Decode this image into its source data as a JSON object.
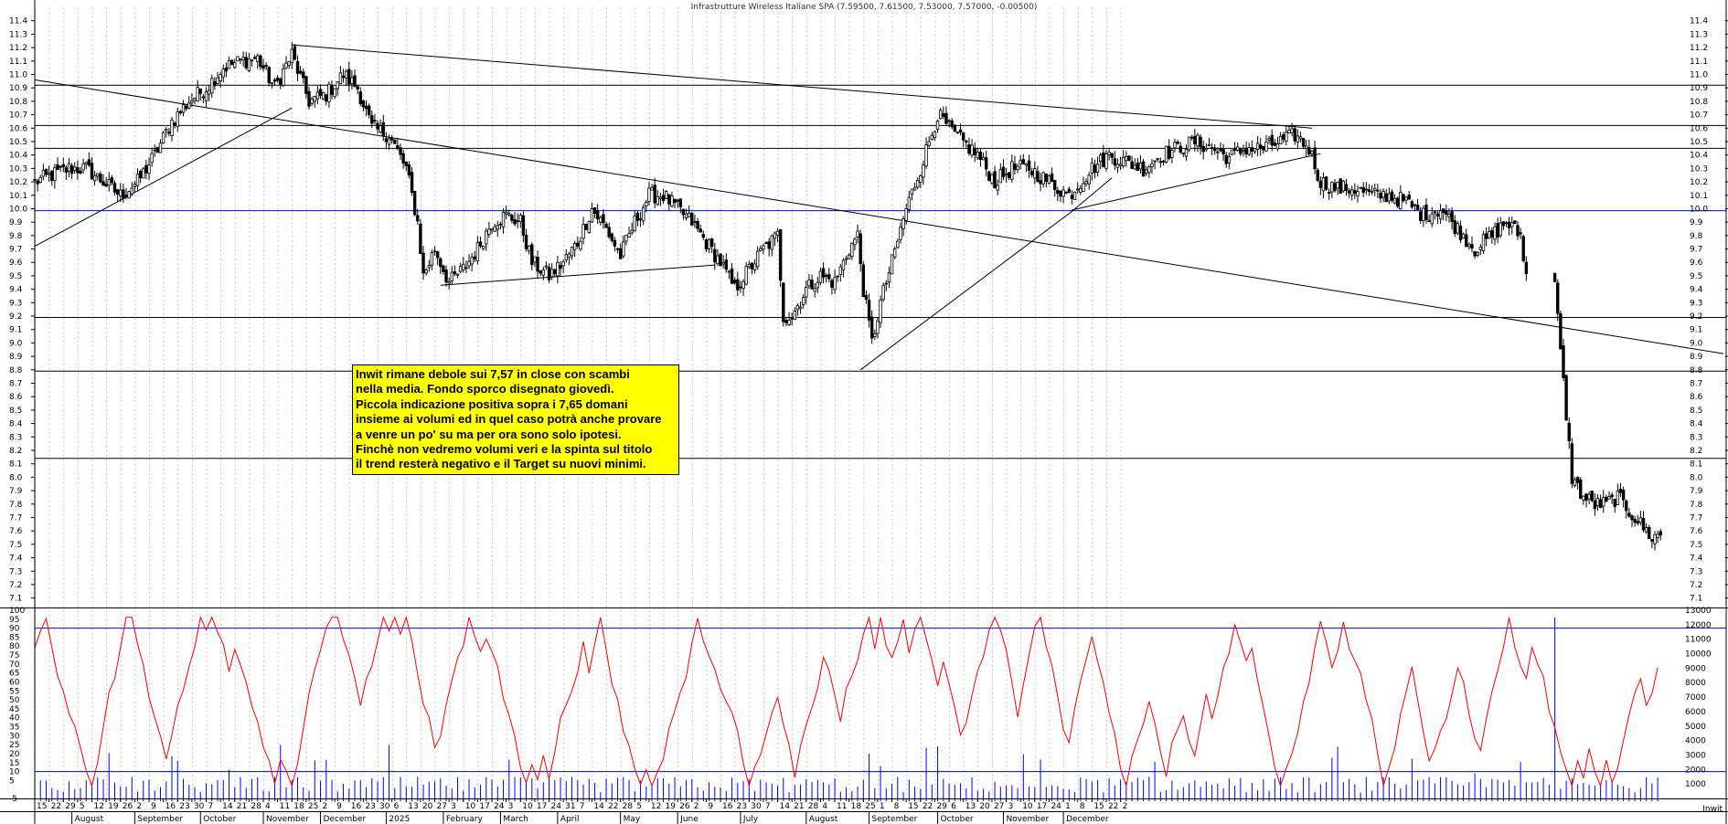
{
  "window_title": "Infrastrutture Wireless Italiane SPA (7.59500, 7.61500, 7.53000, 7.57000, -0.00500)",
  "annotation": "Inwit rimane debole sui 7,57 in close con scambi\nnella media. Fondo sporco disegnato giovedì.\nPiccola indicazione positiva sopra i 7,65 domani\ninsieme ai volumi ed in quel caso potrà anche provare\na venre un po' su ma per ora sono solo ipotesi.\nFinchè non vedremo volumi veri e la spinta sul titolo\nil trend resterà negativo e il Target su nuovi minimi.",
  "corner_label": "Inwit",
  "colors": {
    "grid": "#c8c8c8",
    "price": "#000000",
    "blue": "#0000ff",
    "osc": "#ff0000",
    "vol": "#0000ff",
    "note_bg": "#ffff00"
  },
  "chart_data": [
    {
      "type": "candlestick",
      "title": "Infrastrutture Wireless Italiane SPA (7.59500, 7.61500, 7.53000, 7.57000, -0.00500)",
      "ylim": [
        7.05,
        11.5
      ],
      "ytick_labels": [
        "7.1",
        "7.2",
        "7.3",
        "7.4",
        "7.5",
        "7.6",
        "7.7",
        "7.8",
        "7.9",
        "8.0",
        "8.1",
        "8.2",
        "8.3",
        "8.4",
        "8.5",
        "8.6",
        "8.7",
        "8.8",
        "8.9",
        "9.0",
        "9.1",
        "9.2",
        "9.3",
        "9.4",
        "9.5",
        "9.6",
        "9.7",
        "9.8",
        "9.9",
        "10.0",
        "10.1",
        "10.2",
        "10.3",
        "10.4",
        "10.5",
        "10.6",
        "10.7",
        "10.8",
        "10.9",
        "11.0",
        "11.1",
        "11.2",
        "11.3",
        "11.4"
      ],
      "last_bar": {
        "open": 7.595,
        "high": 7.615,
        "low": 7.53,
        "close": 7.57,
        "change": -0.005
      },
      "horizontal_levels": [
        {
          "value": 10.92,
          "color": "black"
        },
        {
          "value": 10.62,
          "color": "black"
        },
        {
          "value": 10.45,
          "color": "black"
        },
        {
          "value": 9.985,
          "color": "blue"
        },
        {
          "value": 9.19,
          "color": "black"
        },
        {
          "value": 8.79,
          "color": "black"
        },
        {
          "value": 8.14,
          "color": "black"
        }
      ],
      "trendlines": [
        {
          "from": [
            0,
            9.72
          ],
          "to": [
            90,
            10.75
          ]
        },
        {
          "from": [
            0,
            10.96
          ],
          "to": [
            591,
            8.92
          ]
        },
        {
          "from": [
            90,
            11.22
          ],
          "to": [
            447,
            10.6
          ]
        },
        {
          "from": [
            142,
            9.43
          ],
          "to": [
            238,
            9.58
          ]
        },
        {
          "from": [
            289,
            8.8
          ],
          "to": [
            363,
            9.98
          ]
        },
        {
          "from": [
            363,
            9.98
          ],
          "to": [
            377,
            10.23
          ]
        },
        {
          "from": [
            363,
            9.99
          ],
          "to": [
            450,
            10.41
          ]
        }
      ],
      "anchors": [
        [
          0,
          10.2
        ],
        [
          6,
          10.25
        ],
        [
          12,
          10.3
        ],
        [
          18,
          10.3
        ],
        [
          24,
          10.2
        ],
        [
          30,
          10.1
        ],
        [
          36,
          10.2
        ],
        [
          42,
          10.4
        ],
        [
          48,
          10.65
        ],
        [
          54,
          10.8
        ],
        [
          60,
          10.9
        ],
        [
          66,
          11.05
        ],
        [
          72,
          11.1
        ],
        [
          78,
          11.12
        ],
        [
          84,
          10.9
        ],
        [
          90,
          11.15
        ],
        [
          96,
          10.8
        ],
        [
          102,
          10.85
        ],
        [
          108,
          11.0
        ],
        [
          113,
          10.9
        ],
        [
          118,
          10.6
        ],
        [
          124,
          10.55
        ],
        [
          130,
          10.3
        ],
        [
          134,
          9.9
        ],
        [
          136,
          9.5
        ],
        [
          140,
          9.7
        ],
        [
          145,
          9.45
        ],
        [
          150,
          9.55
        ],
        [
          155,
          9.7
        ],
        [
          160,
          9.9
        ],
        [
          165,
          9.95
        ],
        [
          170,
          9.9
        ],
        [
          174,
          9.6
        ],
        [
          180,
          9.5
        ],
        [
          185,
          9.6
        ],
        [
          190,
          9.75
        ],
        [
          195,
          10.0
        ],
        [
          200,
          9.85
        ],
        [
          205,
          9.65
        ],
        [
          210,
          9.9
        ],
        [
          215,
          10.1
        ],
        [
          220,
          10.1
        ],
        [
          225,
          10.0
        ],
        [
          230,
          9.9
        ],
        [
          235,
          9.75
        ],
        [
          240,
          9.6
        ],
        [
          245,
          9.4
        ],
        [
          250,
          9.55
        ],
        [
          255,
          9.7
        ],
        [
          260,
          9.8
        ],
        [
          262,
          9.2
        ],
        [
          265,
          9.2
        ],
        [
          270,
          9.4
        ],
        [
          275,
          9.5
        ],
        [
          280,
          9.45
        ],
        [
          285,
          9.7
        ],
        [
          288,
          9.8
        ],
        [
          290,
          9.4
        ],
        [
          293,
          9.0
        ],
        [
          296,
          9.3
        ],
        [
          300,
          9.6
        ],
        [
          305,
          10.0
        ],
        [
          310,
          10.3
        ],
        [
          316,
          10.7
        ],
        [
          322,
          10.55
        ],
        [
          330,
          10.4
        ],
        [
          336,
          10.2
        ],
        [
          342,
          10.3
        ],
        [
          348,
          10.3
        ],
        [
          355,
          10.2
        ],
        [
          362,
          10.1
        ],
        [
          370,
          10.3
        ],
        [
          376,
          10.4
        ],
        [
          382,
          10.35
        ],
        [
          388,
          10.3
        ],
        [
          394,
          10.4
        ],
        [
          400,
          10.45
        ],
        [
          406,
          10.5
        ],
        [
          412,
          10.45
        ],
        [
          418,
          10.38
        ],
        [
          424,
          10.45
        ],
        [
          430,
          10.45
        ],
        [
          436,
          10.5
        ],
        [
          441,
          10.55
        ],
        [
          446,
          10.45
        ],
        [
          450,
          10.2
        ],
        [
          456,
          10.15
        ],
        [
          462,
          10.15
        ],
        [
          468,
          10.1
        ],
        [
          474,
          10.1
        ],
        [
          480,
          10.05
        ],
        [
          486,
          9.95
        ],
        [
          492,
          10.0
        ],
        [
          498,
          9.85
        ],
        [
          504,
          9.7
        ],
        [
          510,
          9.8
        ],
        [
          515,
          9.9
        ],
        [
          520,
          9.8
        ],
        [
          522,
          9.5
        ],
        [
          524,
          9.4
        ],
        [
          528,
          9.5
        ],
        [
          532,
          9.42
        ],
        [
          535,
          8.7
        ],
        [
          538,
          8.0
        ],
        [
          542,
          7.85
        ],
        [
          546,
          7.8
        ],
        [
          550,
          7.8
        ],
        [
          554,
          7.85
        ],
        [
          558,
          7.75
        ],
        [
          562,
          7.65
        ],
        [
          566,
          7.55
        ],
        [
          569,
          7.57
        ]
      ]
    },
    {
      "type": "line",
      "ylim": [
        -5,
        100
      ],
      "ytick_labels": [
        "-5",
        "5",
        "10",
        "15",
        "20",
        "25",
        "30",
        "35",
        "40",
        "45",
        "50",
        "55",
        "60",
        "65",
        "70",
        "75",
        "80",
        "85",
        "90",
        "95",
        "100"
      ],
      "levels": [
        90,
        10
      ]
    },
    {
      "type": "bar",
      "ylim": [
        0,
        13000
      ],
      "ytick_labels": [
        "1000",
        "2000",
        "3000",
        "4000",
        "5000",
        "6000",
        "7000",
        "8000",
        "9000",
        "10000",
        "11000",
        "12000",
        "13000"
      ]
    }
  ],
  "x_axis": {
    "day_labels": [
      {
        "i": 0,
        "t": "15"
      },
      {
        "i": 5,
        "t": "22"
      },
      {
        "i": 10,
        "t": "29"
      },
      {
        "i": 15,
        "t": "5"
      },
      {
        "i": 20,
        "t": "12"
      },
      {
        "i": 25,
        "t": "19"
      },
      {
        "i": 30,
        "t": "26"
      },
      {
        "i": 35,
        "t": "2"
      },
      {
        "i": 40,
        "t": "9"
      },
      {
        "i": 45,
        "t": "16"
      },
      {
        "i": 50,
        "t": "23"
      },
      {
        "i": 55,
        "t": "30"
      },
      {
        "i": 60,
        "t": "7"
      },
      {
        "i": 65,
        "t": "14"
      },
      {
        "i": 70,
        "t": "21"
      },
      {
        "i": 75,
        "t": "28"
      },
      {
        "i": 80,
        "t": "4"
      },
      {
        "i": 85,
        "t": "11"
      },
      {
        "i": 90,
        "t": "18"
      },
      {
        "i": 95,
        "t": "25"
      },
      {
        "i": 100,
        "t": "2"
      },
      {
        "i": 105,
        "t": "9"
      },
      {
        "i": 110,
        "t": "16"
      },
      {
        "i": 115,
        "t": "23"
      },
      {
        "i": 120,
        "t": "30"
      },
      {
        "i": 125,
        "t": "6"
      },
      {
        "i": 130,
        "t": "13"
      },
      {
        "i": 135,
        "t": "20"
      },
      {
        "i": 140,
        "t": "27"
      },
      {
        "i": 145,
        "t": "3"
      },
      {
        "i": 150,
        "t": "10"
      },
      {
        "i": 155,
        "t": "17"
      },
      {
        "i": 160,
        "t": "24"
      },
      {
        "i": 165,
        "t": "3"
      },
      {
        "i": 170,
        "t": "10"
      },
      {
        "i": 175,
        "t": "17"
      },
      {
        "i": 180,
        "t": "24"
      },
      {
        "i": 185,
        "t": "31"
      },
      {
        "i": 190,
        "t": "7"
      },
      {
        "i": 195,
        "t": "14"
      },
      {
        "i": 200,
        "t": "22"
      },
      {
        "i": 205,
        "t": "28"
      },
      {
        "i": 210,
        "t": "5"
      },
      {
        "i": 215,
        "t": "12"
      },
      {
        "i": 220,
        "t": "19"
      },
      {
        "i": 225,
        "t": "26"
      },
      {
        "i": 230,
        "t": "2"
      },
      {
        "i": 235,
        "t": "9"
      },
      {
        "i": 240,
        "t": "16"
      },
      {
        "i": 245,
        "t": "23"
      },
      {
        "i": 250,
        "t": "30"
      },
      {
        "i": 255,
        "t": "7"
      },
      {
        "i": 260,
        "t": "14"
      },
      {
        "i": 265,
        "t": "21"
      },
      {
        "i": 270,
        "t": "28"
      },
      {
        "i": 275,
        "t": "4"
      },
      {
        "i": 280,
        "t": "11"
      },
      {
        "i": 285,
        "t": "18"
      },
      {
        "i": 290,
        "t": "25"
      },
      {
        "i": 295,
        "t": "1"
      },
      {
        "i": 300,
        "t": "8"
      },
      {
        "i": 305,
        "t": "15"
      },
      {
        "i": 310,
        "t": "22"
      },
      {
        "i": 315,
        "t": "29"
      },
      {
        "i": 320,
        "t": "6"
      },
      {
        "i": 325,
        "t": "13"
      },
      {
        "i": 330,
        "t": "20"
      },
      {
        "i": 335,
        "t": "27"
      },
      {
        "i": 340,
        "t": "3"
      },
      {
        "i": 345,
        "t": "10"
      },
      {
        "i": 350,
        "t": "17"
      },
      {
        "i": 355,
        "t": "24"
      },
      {
        "i": 360,
        "t": "1"
      },
      {
        "i": 365,
        "t": "8"
      },
      {
        "i": 370,
        "t": "15"
      },
      {
        "i": 375,
        "t": "22"
      },
      {
        "i": 380,
        "t": "2"
      }
    ],
    "month_labels": [
      {
        "i": 13,
        "t": "August"
      },
      {
        "i": 35,
        "t": "September"
      },
      {
        "i": 58,
        "t": "October"
      },
      {
        "i": 80,
        "t": "November"
      },
      {
        "i": 100,
        "t": "December"
      },
      {
        "i": 123,
        "t": "2025"
      },
      {
        "i": 143,
        "t": "February"
      },
      {
        "i": 163,
        "t": "March"
      },
      {
        "i": 183,
        "t": "April"
      },
      {
        "i": 205,
        "t": "May"
      },
      {
        "i": 225,
        "t": "June"
      },
      {
        "i": 247,
        "t": "July"
      },
      {
        "i": 270,
        "t": "August"
      },
      {
        "i": 292,
        "t": "September"
      },
      {
        "i": 316,
        "t": "October"
      },
      {
        "i": 339,
        "t": "November"
      },
      {
        "i": 360,
        "t": "December"
      }
    ]
  }
}
